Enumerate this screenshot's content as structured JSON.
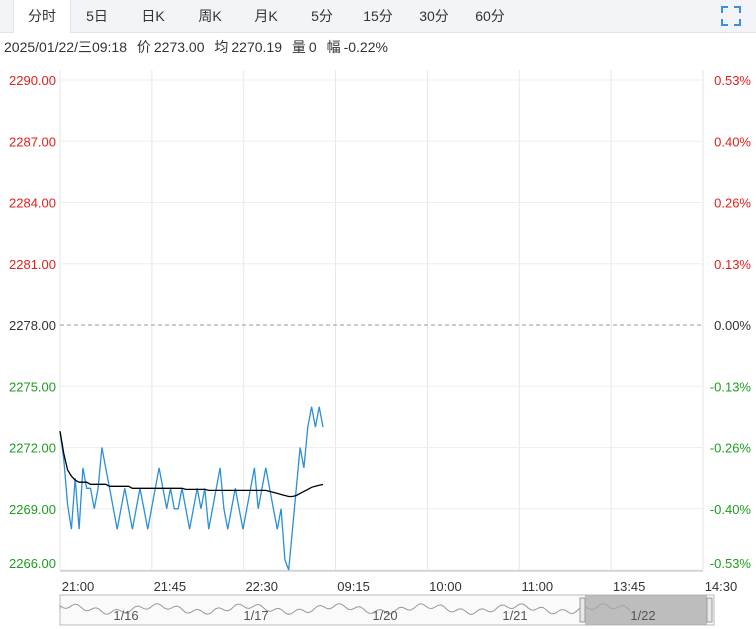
{
  "tabs": [
    {
      "label": "分时",
      "active": true
    },
    {
      "label": "5日",
      "active": false
    },
    {
      "label": "日K",
      "active": false
    },
    {
      "label": "周K",
      "active": false
    },
    {
      "label": "月K",
      "active": false
    },
    {
      "label": "5分",
      "active": false
    },
    {
      "label": "15分",
      "active": false
    },
    {
      "label": "30分",
      "active": false
    },
    {
      "label": "60分",
      "active": false
    }
  ],
  "toolbar": {
    "fullscreen_icon": "fullscreen-icon"
  },
  "info": {
    "datetime": "2025/01/22/三09:18",
    "price_label": "价",
    "price": "2273.00",
    "avg_label": "均",
    "avg": "2270.19",
    "vol_label": "量",
    "vol": "0",
    "chg_label": "幅",
    "chg": "-0.22%"
  },
  "colors": {
    "up": "#e0201c",
    "down": "#1e9c1e",
    "price_line": "#2b8fd6",
    "avg_line": "#000000"
  },
  "chart_data": {
    "type": "line",
    "base_price": 2278.0,
    "ylim": [
      2266.0,
      2290.0
    ],
    "y_ticks": [
      "2290.00",
      "2287.00",
      "2284.00",
      "2281.00",
      "2278.00",
      "2275.00",
      "2272.00",
      "2269.00",
      "2266.00"
    ],
    "pct_ticks": [
      "0.53%",
      "0.40%",
      "0.26%",
      "0.13%",
      "0.00%",
      "-0.13%",
      "-0.26%",
      "-0.40%",
      "-0.53%"
    ],
    "x_ticks": [
      "21:00",
      "21:45",
      "22:30",
      "09:15",
      "10:00",
      "11:00",
      "13:45",
      "14:30"
    ],
    "series": [
      {
        "key": "price",
        "values": [
          2272.8,
          2271.4,
          2269.2,
          2268.0,
          2270.5,
          2268.0,
          2271.0,
          2270.0,
          2270.0,
          2269.0,
          2270.0,
          2272.0,
          2271.0,
          2270.0,
          2269.0,
          2268.0,
          2269.0,
          2270.0,
          2269.0,
          2268.0,
          2269.0,
          2270.0,
          2269.0,
          2268.0,
          2269.0,
          2270.0,
          2271.0,
          2270.0,
          2269.0,
          2270.0,
          2269.0,
          2269.0,
          2270.0,
          2269.0,
          2268.0,
          2269.0,
          2270.0,
          2269.0,
          2270.0,
          2268.0,
          2269.0,
          2270.0,
          2271.0,
          2269.0,
          2268.0,
          2269.0,
          2270.0,
          2269.0,
          2268.0,
          2269.0,
          2270.0,
          2271.0,
          2269.0,
          2270.0,
          2271.0,
          2270.0,
          2269.0,
          2268.0,
          2269.0,
          2266.5,
          2266.0,
          2268.0,
          2270.0,
          2272.0,
          2271.0,
          2273.0,
          2274.0,
          2273.0,
          2274.0,
          2273.0
        ]
      },
      {
        "key": "avg",
        "values": [
          2272.8,
          2271.7,
          2270.9,
          2270.6,
          2270.4,
          2270.3,
          2270.3,
          2270.3,
          2270.2,
          2270.2,
          2270.2,
          2270.2,
          2270.2,
          2270.1,
          2270.1,
          2270.1,
          2270.1,
          2270.1,
          2270.1,
          2270.0,
          2270.0,
          2270.0,
          2270.0,
          2270.0,
          2270.0,
          2270.0,
          2270.0,
          2270.0,
          2270.0,
          2270.0,
          2270.0,
          2270.0,
          2270.0,
          2269.95,
          2269.95,
          2269.95,
          2269.95,
          2269.95,
          2269.95,
          2269.9,
          2269.9,
          2269.9,
          2269.9,
          2269.9,
          2269.9,
          2269.9,
          2269.9,
          2269.9,
          2269.9,
          2269.9,
          2269.9,
          2269.9,
          2269.9,
          2269.9,
          2269.9,
          2269.85,
          2269.8,
          2269.75,
          2269.7,
          2269.65,
          2269.6,
          2269.6,
          2269.65,
          2269.75,
          2269.85,
          2269.95,
          2270.05,
          2270.1,
          2270.15,
          2270.19
        ]
      }
    ],
    "navigator": {
      "labels": [
        "1/16",
        "1/17",
        "1/20",
        "1/21",
        "1/22"
      ],
      "selected": "1/22"
    }
  }
}
